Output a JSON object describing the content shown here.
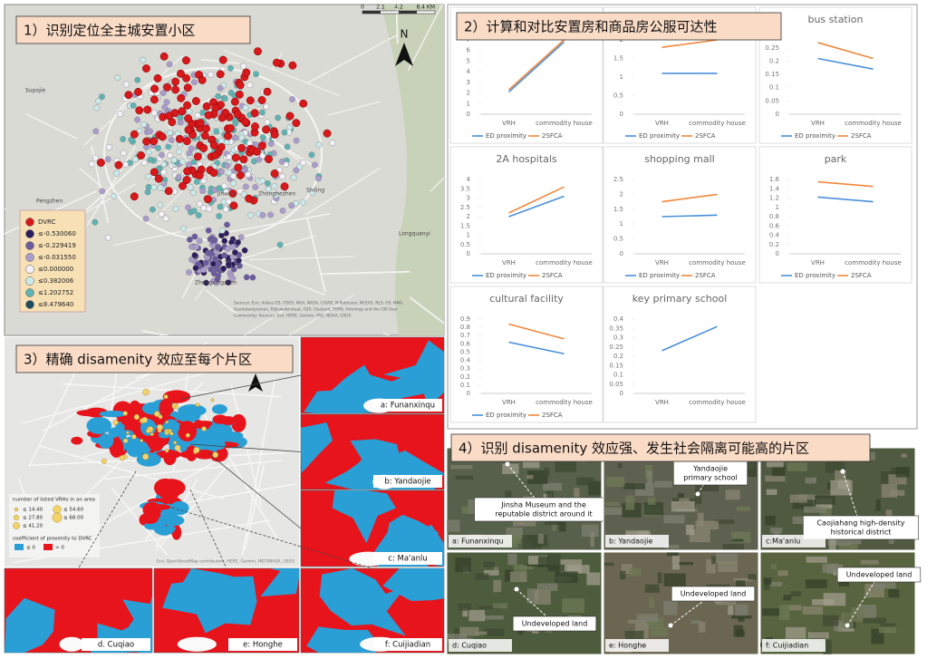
{
  "panel1": {
    "title": "1）识别定位全主城安置小区",
    "north": "N",
    "scale": [
      "0",
      "2.1",
      "4.2",
      "8.4 KM"
    ],
    "legend": [
      {
        "label": "DVRC",
        "color": "#d7191c"
      },
      {
        "label": "≤-0.530060",
        "color": "#2c1e5e"
      },
      {
        "label": "≤-0.229419",
        "color": "#6a5a9e"
      },
      {
        "label": "≤-0.031550",
        "color": "#aa9dcc"
      },
      {
        "label": "≤0.000000",
        "color": "#f4f2f8"
      },
      {
        "label": "≤0.382006",
        "color": "#cdeaea"
      },
      {
        "label": "≤1.202752",
        "color": "#5fb3b3"
      },
      {
        "label": "≤8.479640",
        "color": "#1f4e5f"
      }
    ],
    "places": [
      "Supojie",
      "Pengzhen",
      "Jinxing",
      "Zhonghezhen",
      "Shiling",
      "Longquanyi",
      "Zhongxingzhen"
    ],
    "credits": [
      "Sources: Esri, Airbus DS, USGS, NGA, NASA, CGIAR, N Robinson, NCEAS, NLS, OS, NMA,",
      "Geodatastyrelsen, Rijkswaterstaat, GSA, Geoland, FEMA, Intermap and the GIS User",
      "Community; Sources: Esri, HERE, Garmin, FAO, NOAA, USGS"
    ]
  },
  "panel2": {
    "title": "2）计算和对比安置房和商品房公服可达性"
  },
  "chart_data": [
    {
      "type": "line",
      "categories": [
        "VRH",
        "commodity house"
      ],
      "series": [
        {
          "name": "ED proximity",
          "color": "#4a90d9",
          "values": [
            2.1,
            6.8
          ]
        },
        {
          "name": "2SFCA",
          "color": "#f0883e",
          "values": [
            2.3,
            7
          ]
        }
      ],
      "ylim": [
        0,
        7
      ],
      "yticks": [
        0,
        1,
        2,
        3,
        4,
        5,
        6,
        7
      ]
    },
    {
      "type": "line",
      "categories": [
        "VRH",
        "commodity house"
      ],
      "series": [
        {
          "name": "ED proximity",
          "color": "#4a90d9",
          "values": [
            1.1,
            1.1
          ]
        },
        {
          "name": "2SFCA",
          "color": "#f0883e",
          "values": [
            1.8,
            2
          ]
        }
      ],
      "ylim": [
        0,
        2
      ],
      "yticks": [
        0,
        0.5,
        1,
        1.5,
        2
      ]
    },
    {
      "type": "line",
      "title": "bus station",
      "categories": [
        "VRH",
        "commodity house"
      ],
      "series": [
        {
          "name": "ED proximity",
          "color": "#4a90d9",
          "values": [
            0.21,
            0.17
          ]
        },
        {
          "name": "2SFCA",
          "color": "#f0883e",
          "values": [
            0.27,
            0.21
          ]
        }
      ],
      "ylim": [
        0,
        0.28
      ],
      "yticks": [
        0,
        0.05,
        0.1,
        0.15,
        0.2,
        0.25
      ]
    },
    {
      "type": "line",
      "title": "2A hospitals",
      "categories": [
        "VRH",
        "commodity house"
      ],
      "series": [
        {
          "name": "ED proximity",
          "color": "#4a90d9",
          "values": [
            2,
            3.1
          ]
        },
        {
          "name": "2SFCA",
          "color": "#f0883e",
          "values": [
            2.2,
            3.6
          ]
        }
      ],
      "ylim": [
        0,
        4
      ],
      "yticks": [
        0,
        0.5,
        1,
        1.5,
        2,
        2.5,
        3,
        3.5,
        4
      ]
    },
    {
      "type": "line",
      "title": "shopping mall",
      "categories": [
        "VRH",
        "commodity house"
      ],
      "series": [
        {
          "name": "ED proximity",
          "color": "#4a90d9",
          "values": [
            1.25,
            1.3
          ]
        },
        {
          "name": "2SFCA",
          "color": "#f0883e",
          "values": [
            1.75,
            2
          ]
        }
      ],
      "ylim": [
        0,
        2.5
      ],
      "yticks": [
        0,
        0.5,
        1,
        1.5,
        2,
        2.5
      ]
    },
    {
      "type": "line",
      "title": "park",
      "categories": [
        "VRH",
        "commodity house"
      ],
      "series": [
        {
          "name": "ED proximity",
          "color": "#4a90d9",
          "values": [
            1.22,
            1.12
          ]
        },
        {
          "name": "2SFCA",
          "color": "#f0883e",
          "values": [
            1.55,
            1.45
          ]
        }
      ],
      "ylim": [
        0,
        1.6
      ],
      "yticks": [
        0,
        0.2,
        0.4,
        0.6,
        0.8,
        1,
        1.2,
        1.4,
        1.6
      ]
    },
    {
      "type": "line",
      "title": "cultural facility",
      "categories": [
        "VRH",
        "commodity house"
      ],
      "series": [
        {
          "name": "ED proximity",
          "color": "#4a90d9",
          "values": [
            0.62,
            0.48
          ]
        },
        {
          "name": "2SFCA",
          "color": "#f0883e",
          "values": [
            0.84,
            0.66
          ]
        }
      ],
      "ylim": [
        0,
        0.9
      ],
      "yticks": [
        0,
        0.1,
        0.2,
        0.3,
        0.4,
        0.5,
        0.6,
        0.7,
        0.8,
        0.9
      ]
    },
    {
      "type": "line",
      "title": "key primary school",
      "categories": [
        "VRH",
        "commodity house"
      ],
      "series": [
        {
          "color": "#4a90d9",
          "values": [
            0.23,
            0.36
          ]
        }
      ],
      "ylim": [
        0,
        0.4
      ],
      "yticks": [
        0,
        0.05,
        0.1,
        0.15,
        0.2,
        0.25,
        0.3,
        0.35,
        0.4
      ]
    }
  ],
  "panel3": {
    "title": "3）精确 disamenity 效应至每个片区",
    "legend_count_title": "number of listed VRHs in an area",
    "count_classes": [
      "≤ 14.40",
      "≤ 27.80",
      "≤ 41.20",
      "≤ 54.60",
      "≤ 68.00"
    ],
    "legend_coef_title": "coefficient of proximity to DVRC",
    "coef_classes": [
      {
        "label": "≤ 0",
        "color": "#2a9fd6"
      },
      {
        "label": "> 0",
        "color": "#e8141c"
      }
    ],
    "insets": [
      "a: Funanxinqu",
      "b: Yandaojie",
      "c: Ma'anlu",
      "d. Cuqiao",
      "e: Honghe",
      "f: Cuijiadian"
    ],
    "credits": "Esri, OpenStreetMap contributors, HERE, Garmin, METI/NASA, USGS"
  },
  "panel4": {
    "title": "4）识别 disamenity 效应强、发生社会隔离可能高的片区",
    "tiles": [
      "a: Funanxinqu",
      "b: Yandaojie",
      "c:Ma'anlu",
      "d: Cuqiao",
      "e: Honghe",
      "f: Cuijiadian"
    ],
    "notes": [
      [
        "Jinsha Museum and the",
        "reputable district around it"
      ],
      [
        "Yandaojie",
        "primary school"
      ],
      [
        "Caojiahang high-density",
        "historical district"
      ],
      [
        "Undeveloped land"
      ],
      [
        "Undeveloped land"
      ],
      [
        "Undeveloped land"
      ]
    ]
  }
}
